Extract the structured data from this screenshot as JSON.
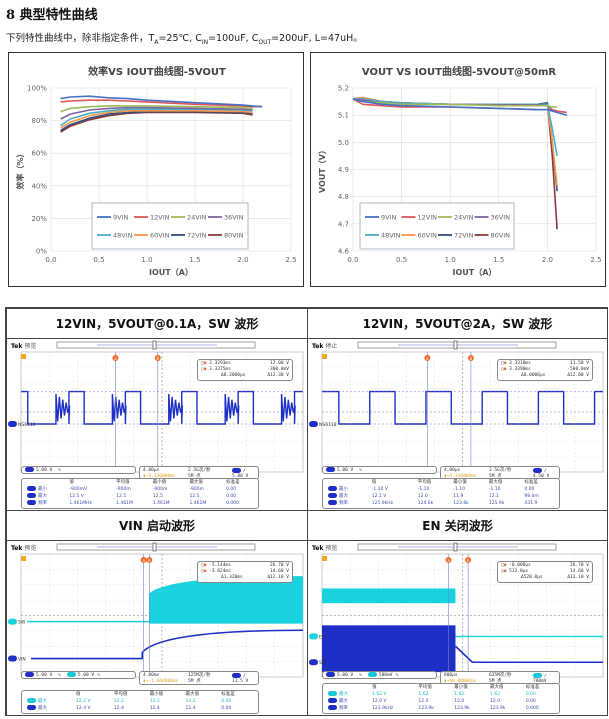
{
  "section": {
    "number": "8",
    "title": "8  典型特性曲线",
    "description_prefix": "下列特性曲线中，除非指定条件，",
    "conditions": "T_A=25℃, C_IN=100uF, C_OUT=200uF, L=47uH。",
    "ta": "T",
    "ta_sub": "A",
    "ta_val": "=25℃, C",
    "cin_sub": "IN",
    "cin_val": "=100uF, C",
    "cout_sub": "OUT",
    "cout_val": "=200uF, L=47uH。"
  },
  "legend": {
    "series_colors": {
      "9VIN": "#4472c4",
      "12VIN": "#e05555",
      "24VIN": "#9bbb59",
      "36VIN": "#8064a2",
      "48VIN": "#4bacc6",
      "60VIN": "#f79646",
      "72VIN": "#2f4f7f",
      "80VIN": "#8b3a3a"
    }
  },
  "chart_data": [
    {
      "type": "line",
      "title": "效率VS IOUT曲线图-5VOUT",
      "xlabel": "IOUT（A）",
      "ylabel": "效率（%）",
      "xlim": [
        0,
        2.5
      ],
      "ylim": [
        0,
        100
      ],
      "xticks": [
        "0.0",
        "0.5",
        "1.0",
        "1.5",
        "2.0",
        "2.5"
      ],
      "yticks": [
        "0%",
        "20%",
        "40%",
        "60%",
        "80%",
        "100%"
      ],
      "grid": true,
      "legend_position": "lower center inside",
      "x": [
        0.1,
        0.2,
        0.4,
        0.6,
        0.8,
        1.0,
        1.5,
        2.0,
        2.1,
        2.2
      ],
      "series": [
        {
          "name": "9VIN",
          "values": [
            93.5,
            94.5,
            95,
            94,
            93.5,
            92.5,
            91,
            89.5,
            89,
            88.5
          ]
        },
        {
          "name": "12VIN",
          "values": [
            91.5,
            92,
            92.5,
            92.5,
            92,
            91.5,
            90,
            89,
            88.5,
            88.5
          ]
        },
        {
          "name": "24VIN",
          "values": [
            85.5,
            87.5,
            88.5,
            89,
            89,
            89,
            88.5,
            88,
            87.5,
            null
          ]
        },
        {
          "name": "36VIN",
          "values": [
            81,
            84,
            86.5,
            87.5,
            88,
            88,
            87.5,
            87,
            86.5,
            null
          ]
        },
        {
          "name": "48VIN",
          "values": [
            77,
            81,
            84.5,
            86,
            87,
            87,
            87,
            86.5,
            86,
            null
          ]
        },
        {
          "name": "60VIN",
          "values": [
            75.5,
            79,
            83,
            85,
            86,
            86,
            86,
            85.5,
            85,
            null
          ]
        },
        {
          "name": "72VIN",
          "values": [
            74,
            77.5,
            81.5,
            84,
            85,
            85.5,
            85.5,
            85,
            84.5,
            null
          ]
        },
        {
          "name": "80VIN",
          "values": [
            73,
            76.5,
            80.5,
            83,
            84.5,
            85,
            85,
            84.5,
            83.5,
            null
          ]
        }
      ]
    },
    {
      "type": "line",
      "title": "VOUT VS IOUT曲线图-5VOUT@50mR",
      "xlabel": "IOUT（A）",
      "ylabel": "VOUT（V）",
      "xlim": [
        0,
        2.5
      ],
      "ylim": [
        4.6,
        5.2
      ],
      "xticks": [
        "0.0",
        "0.5",
        "1.0",
        "1.5",
        "2.0",
        "2.5"
      ],
      "yticks": [
        "4.6",
        "4.7",
        "4.8",
        "4.9",
        "5.0",
        "5.1",
        "5.2"
      ],
      "grid": true,
      "legend_position": "lower left inside",
      "x": [
        0.0,
        0.1,
        0.3,
        0.5,
        1.0,
        1.5,
        1.9,
        2.0,
        2.05,
        2.1,
        2.2
      ],
      "series": [
        {
          "name": "9VIN",
          "values": [
            5.16,
            5.15,
            5.14,
            5.135,
            5.13,
            5.125,
            5.12,
            5.12,
            5.115,
            5.11,
            5.1
          ]
        },
        {
          "name": "12VIN",
          "values": [
            5.16,
            5.14,
            5.135,
            5.13,
            5.13,
            5.125,
            5.12,
            5.12,
            5.12,
            5.115,
            5.11
          ]
        },
        {
          "name": "24VIN",
          "values": [
            5.16,
            5.15,
            5.145,
            5.14,
            5.14,
            5.135,
            5.135,
            5.135,
            5.13,
            5.13,
            null
          ]
        },
        {
          "name": "36VIN",
          "values": [
            5.16,
            5.155,
            5.145,
            5.14,
            5.14,
            5.138,
            5.138,
            5.135,
            5.12,
            5.11,
            null
          ]
        },
        {
          "name": "48VIN",
          "values": [
            5.16,
            5.16,
            5.15,
            5.145,
            5.14,
            5.14,
            5.14,
            5.14,
            5.05,
            4.95,
            null
          ]
        },
        {
          "name": "60VIN",
          "values": [
            5.16,
            5.165,
            5.15,
            5.145,
            5.14,
            5.14,
            5.14,
            5.14,
            5.0,
            4.84,
            null
          ]
        },
        {
          "name": "72VIN",
          "values": [
            5.16,
            5.16,
            5.15,
            5.145,
            5.14,
            5.14,
            5.14,
            5.145,
            5.0,
            4.82,
            null
          ]
        },
        {
          "name": "80VIN",
          "values": [
            5.16,
            5.165,
            5.15,
            5.145,
            5.14,
            5.14,
            5.14,
            5.145,
            4.95,
            4.68,
            null
          ]
        }
      ]
    }
  ],
  "waveforms": [
    {
      "title": "12VIN，5VOUT@0.1A，SW 波形",
      "status": "预览",
      "cursor": {
        "a_time": "3.3293ms",
        "a_val": "12.00 V",
        "b_time": "3.3375ms",
        "b_val": "-300.0mV",
        "d_time": "Δ8.2000μs",
        "d_val": "Δ12.30 V"
      },
      "ch_labels": [
        "NS6118"
      ],
      "scale": {
        "ch1": "5.00 V"
      },
      "horiz": {
        "time_div": "4.00μs",
        "sample": "2.5G次/秒",
        "trigger_pos": "3.336000ms",
        "points": "5M 点",
        "trig_level": "5.80 V"
      },
      "meas_header": [
        "值",
        "平均值",
        "最小值",
        "最大值",
        "标准差"
      ],
      "meas": [
        {
          "ch": "1",
          "name": "最小",
          "vals": [
            "-900mV",
            "-900m",
            "-900m",
            "-900m",
            "0.00"
          ]
        },
        {
          "ch": "1",
          "name": "最大",
          "vals": [
            "12.5 V",
            "12.5",
            "12.5",
            "12.5",
            "0.00"
          ]
        },
        {
          "ch": "1",
          "name": "频率",
          "vals": [
            "1.461MHz",
            "1.461M",
            "1.461M",
            "1.461M",
            "0.000"
          ]
        }
      ]
    },
    {
      "title": "12VIN，5VOUT@2A，SW 波形",
      "status": "停止",
      "cursor": {
        "a_time": "3.3310ms",
        "a_val": "11.50 V",
        "b_time": "3.3390ms",
        "b_val": "-500.0mV",
        "d_time": "Δ8.0000μs",
        "d_val": "Δ12.00 V"
      },
      "ch_labels": [
        "NS6118"
      ],
      "scale": {
        "ch1": "5.00 V"
      },
      "horiz": {
        "time_div": "4.00μs",
        "sample": "2.5G次/秒",
        "trigger_pos": "3.336000ms",
        "points": "5M 点",
        "trig_level": "4.50 V"
      },
      "meas_header": [
        "值",
        "平均值",
        "最小值",
        "最大值",
        "标准差"
      ],
      "meas": [
        {
          "ch": "1",
          "name": "最小",
          "vals": [
            "-1.10 V",
            "-1.10",
            "-1.10",
            "-1.10",
            "0.00"
          ]
        },
        {
          "ch": "1",
          "name": "最大",
          "vals": [
            "12.1 V",
            "12.0",
            "11.9",
            "12.1",
            "98.0m"
          ]
        },
        {
          "ch": "1",
          "name": "频率",
          "vals": [
            "125.9kHz",
            "124.6k",
            "123.6k",
            "125.9k",
            "431.9"
          ]
        }
      ]
    },
    {
      "title": "VIN 启动波形",
      "status": "预览",
      "cursor": {
        "a_time": "-5.144ms",
        "a_val": "26.70 V",
        "b_time": "-3.824ms",
        "b_val": "14.60 V",
        "d_time": "Δ1.320ms",
        "d_val": "Δ12.10 V"
      },
      "ch_labels": [
        "SW",
        "VIN"
      ],
      "scale": {
        "ch1": "5.00 V",
        "ch2": "5.00 V"
      },
      "horiz": {
        "time_div": "4.00ms",
        "sample": "125M次/秒",
        "trigger_pos": "-1.944000ms",
        "points": "5M 点",
        "trig_level": "11.5 V"
      },
      "meas_header": [
        "值",
        "平均值",
        "最小值",
        "最大值",
        "标准差"
      ],
      "meas": [
        {
          "ch": "2",
          "name": "最大",
          "vals": [
            "12.2 V",
            "12.2",
            "12.2",
            "12.2",
            "0.00"
          ]
        },
        {
          "ch": "1",
          "name": "最大",
          "vals": [
            "12.4 V",
            "12.4",
            "12.4",
            "12.4",
            "0.00"
          ]
        }
      ]
    },
    {
      "title": "EN 关闭波形",
      "status": "预览",
      "cursor": {
        "a_time": "-8.000μs",
        "a_val": "26.70 V",
        "b_time": "512.0μs",
        "b_val": "14.60 V",
        "d_time": "Δ520.0μs",
        "d_val": "Δ12.10 V"
      },
      "ch_labels": [
        "EN",
        "SW"
      ],
      "scale": {
        "ch1": "5.00 V",
        "ch2": "500mV"
      },
      "horiz": {
        "time_div": "800μs",
        "sample": "625M次/秒",
        "trigger_pos": "60.00000μs",
        "points": "5M 点",
        "trig_level": "780mV"
      },
      "meas_header": [
        "值",
        "平均值",
        "最小值",
        "最大值",
        "标准差"
      ],
      "meas": [
        {
          "ch": "2",
          "name": "最大",
          "vals": [
            "1.62 V",
            "1.62",
            "1.62",
            "1.62",
            "0.00"
          ]
        },
        {
          "ch": "1",
          "name": "最大",
          "vals": [
            "12.0 V",
            "12.0",
            "12.0",
            "12.0",
            "0.00"
          ]
        },
        {
          "ch": "1",
          "name": "频率",
          "vals": [
            "123.9kHz",
            "123.9k",
            "123.9k",
            "123.9k",
            "0.000"
          ]
        }
      ]
    }
  ],
  "labels": {
    "tek": "Tek",
    "cursor_a": "a",
    "cursor_b": "b",
    "trigger_mark": "T"
  }
}
